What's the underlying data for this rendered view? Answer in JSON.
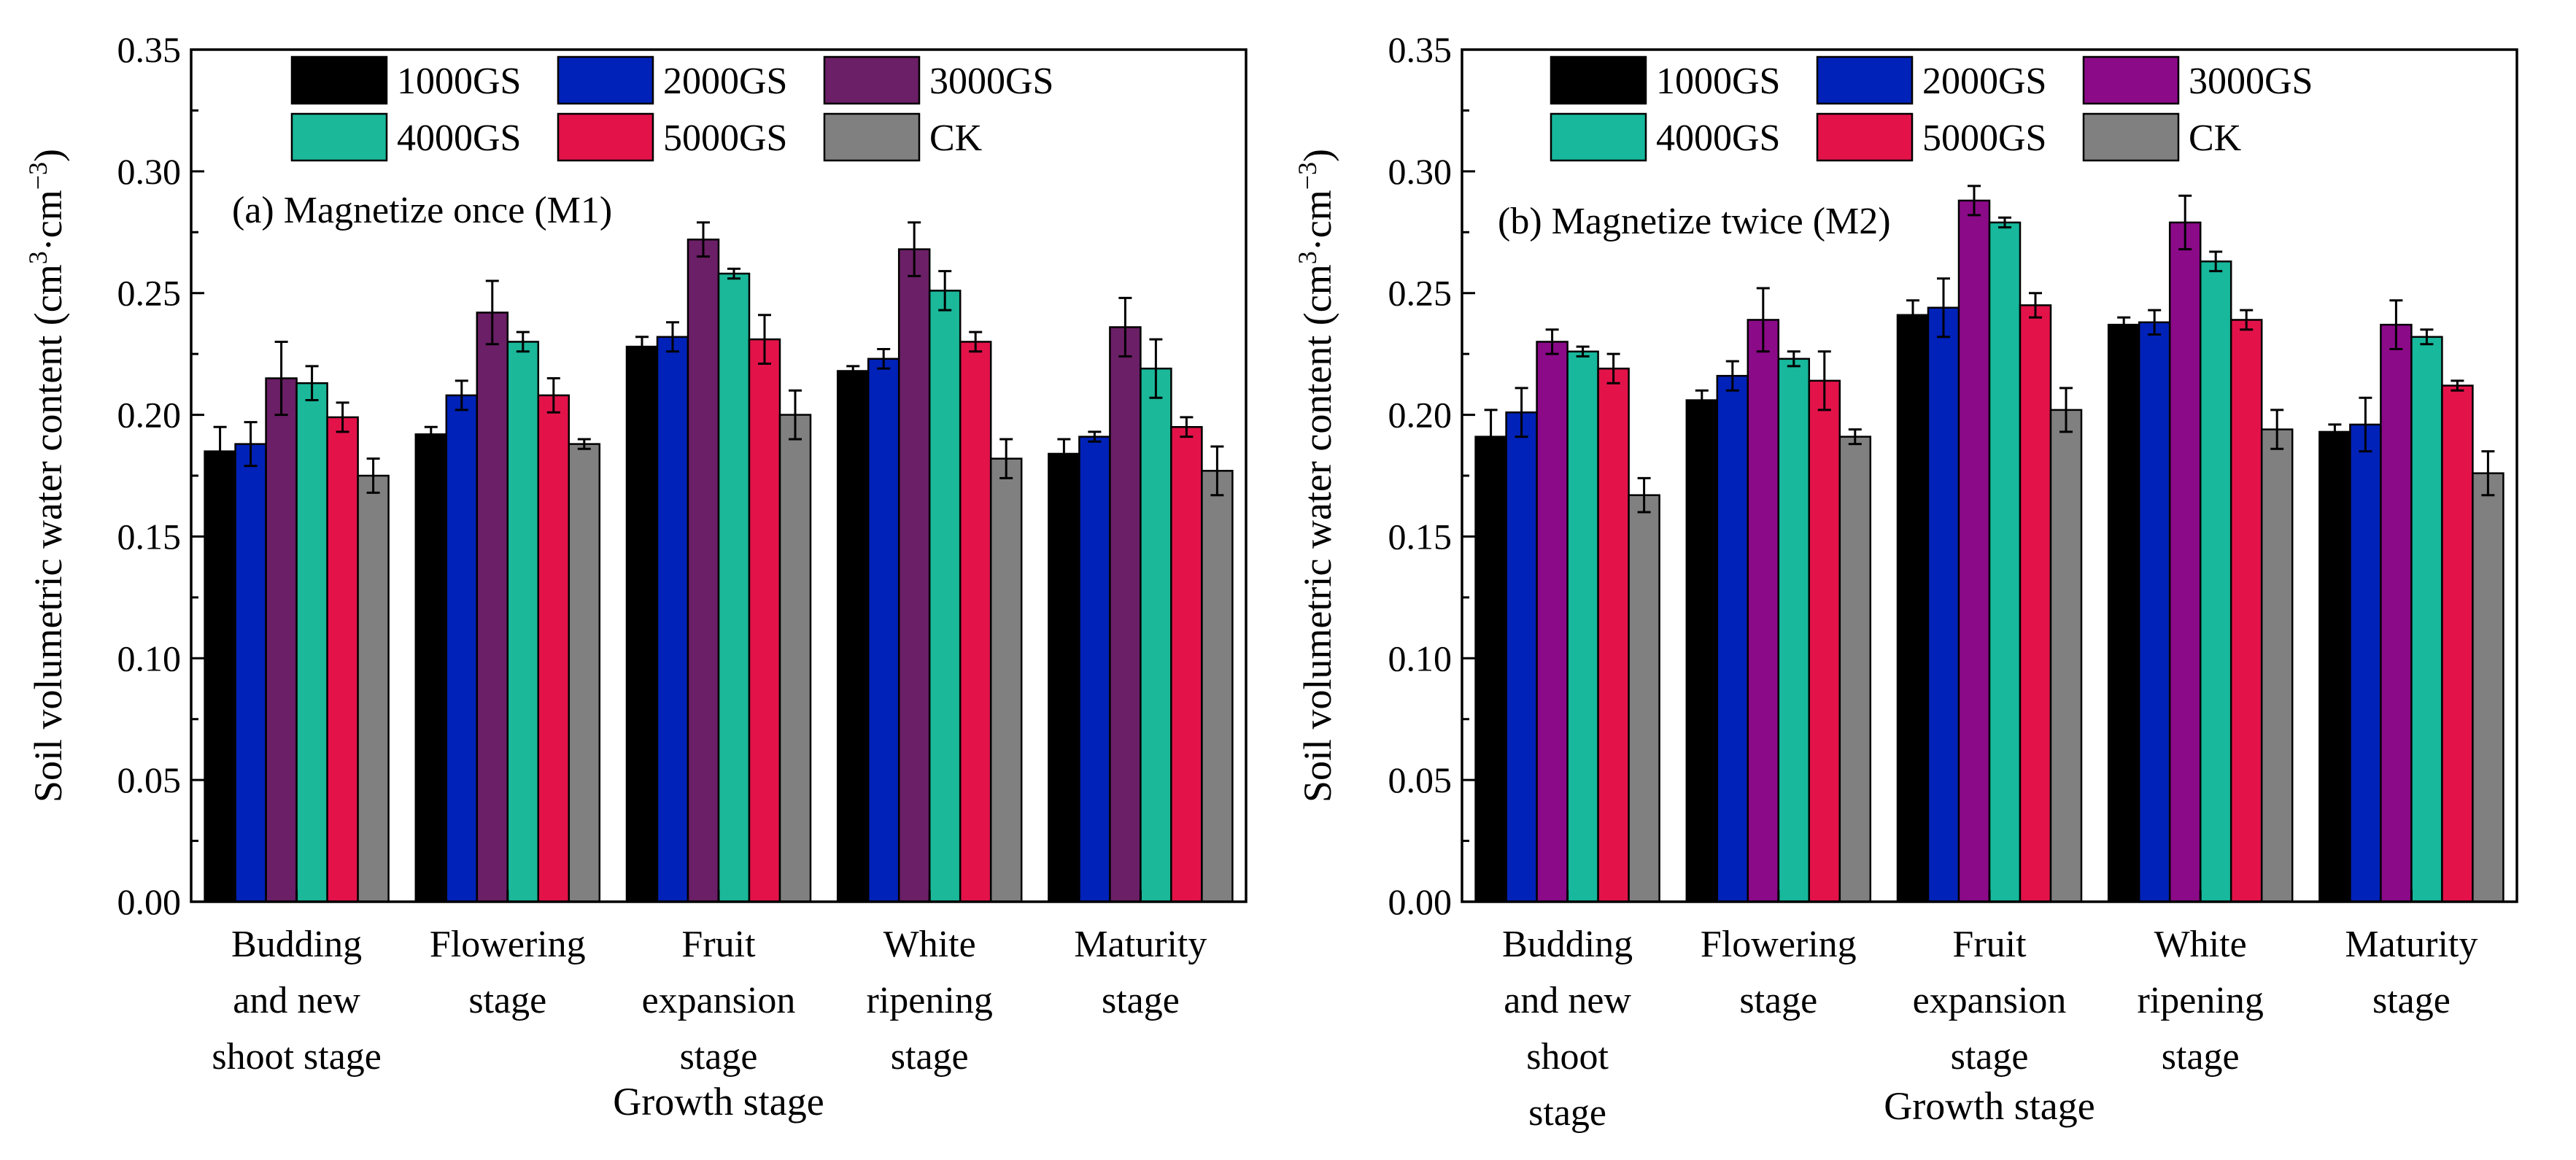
{
  "chart_data": [
    {
      "type": "bar",
      "title": "(a) Magnetize once (M1)",
      "xlabel": "Growth stage",
      "ylabel": "Soil volumetric water content (cm",
      "ylabel_sup1": "3",
      "ylabel_mid": "·cm",
      "ylabel_sup2": "−3",
      "ylabel_end": ")",
      "ylim": [
        0,
        0.35
      ],
      "yticks": [
        "0.00",
        "0.05",
        "0.10",
        "0.15",
        "0.20",
        "0.25",
        "0.30",
        "0.35"
      ],
      "categories": [
        [
          "Budding",
          "and new",
          "shoot stage"
        ],
        [
          "Flowering",
          "stage"
        ],
        [
          "Fruit",
          "expansion",
          "stage"
        ],
        [
          "White",
          "ripening",
          "stage"
        ],
        [
          "Maturity",
          "stage"
        ]
      ],
      "legend_position": "top",
      "series": [
        {
          "name": "1000GS",
          "color": "#000000",
          "values": [
            0.185,
            0.192,
            0.228,
            0.218,
            0.184
          ],
          "errors": [
            0.01,
            0.003,
            0.004,
            0.002,
            0.006
          ]
        },
        {
          "name": "2000GS",
          "color": "#0022b8",
          "values": [
            0.188,
            0.208,
            0.232,
            0.223,
            0.191
          ],
          "errors": [
            0.009,
            0.006,
            0.006,
            0.004,
            0.002
          ]
        },
        {
          "name": "3000GS",
          "color": "#6b1f66",
          "values": [
            0.215,
            0.242,
            0.272,
            0.268,
            0.236
          ],
          "errors": [
            0.015,
            0.013,
            0.007,
            0.011,
            0.012
          ]
        },
        {
          "name": "4000GS",
          "color": "#1bb89a",
          "values": [
            0.213,
            0.23,
            0.258,
            0.251,
            0.219
          ],
          "errors": [
            0.007,
            0.004,
            0.002,
            0.008,
            0.012
          ]
        },
        {
          "name": "5000GS",
          "color": "#e3134a",
          "values": [
            0.199,
            0.208,
            0.231,
            0.23,
            0.195
          ],
          "errors": [
            0.006,
            0.007,
            0.01,
            0.004,
            0.004
          ]
        },
        {
          "name": "CK",
          "color": "#808080",
          "values": [
            0.175,
            0.188,
            0.2,
            0.182,
            0.177
          ],
          "errors": [
            0.007,
            0.002,
            0.01,
            0.008,
            0.01
          ]
        }
      ]
    },
    {
      "type": "bar",
      "title": "(b) Magnetize twice (M2)",
      "xlabel": "Growth stage",
      "ylabel": "Soil volumetric water content (cm",
      "ylabel_sup1": "3",
      "ylabel_mid": "·cm",
      "ylabel_sup2": "−3",
      "ylabel_end": ")",
      "ylim": [
        0,
        0.35
      ],
      "yticks": [
        "0.00",
        "0.05",
        "0.10",
        "0.15",
        "0.20",
        "0.25",
        "0.30",
        "0.35"
      ],
      "categories": [
        [
          "Budding",
          "and new",
          "shoot",
          "stage"
        ],
        [
          "Flowering",
          "stage"
        ],
        [
          "Fruit",
          "expansion",
          "stage"
        ],
        [
          "White",
          "ripening",
          "stage"
        ],
        [
          "Maturity",
          "stage"
        ]
      ],
      "legend_position": "top",
      "series": [
        {
          "name": "1000GS",
          "color": "#000000",
          "values": [
            0.191,
            0.206,
            0.241,
            0.237,
            0.193
          ],
          "errors": [
            0.011,
            0.004,
            0.006,
            0.003,
            0.003
          ]
        },
        {
          "name": "2000GS",
          "color": "#0022b8",
          "values": [
            0.201,
            0.216,
            0.244,
            0.238,
            0.196
          ],
          "errors": [
            0.01,
            0.006,
            0.012,
            0.005,
            0.011
          ]
        },
        {
          "name": "3000GS",
          "color": "#8b0a88",
          "values": [
            0.23,
            0.239,
            0.288,
            0.279,
            0.237
          ],
          "errors": [
            0.005,
            0.013,
            0.006,
            0.011,
            0.01
          ]
        },
        {
          "name": "4000GS",
          "color": "#17b89c",
          "values": [
            0.226,
            0.223,
            0.279,
            0.263,
            0.232
          ],
          "errors": [
            0.002,
            0.003,
            0.002,
            0.004,
            0.003
          ]
        },
        {
          "name": "5000GS",
          "color": "#e3134a",
          "values": [
            0.219,
            0.214,
            0.245,
            0.239,
            0.212
          ],
          "errors": [
            0.006,
            0.012,
            0.005,
            0.004,
            0.002
          ]
        },
        {
          "name": "CK",
          "color": "#808080",
          "values": [
            0.167,
            0.191,
            0.202,
            0.194,
            0.176
          ],
          "errors": [
            0.007,
            0.003,
            0.009,
            0.008,
            0.009
          ]
        }
      ]
    }
  ]
}
